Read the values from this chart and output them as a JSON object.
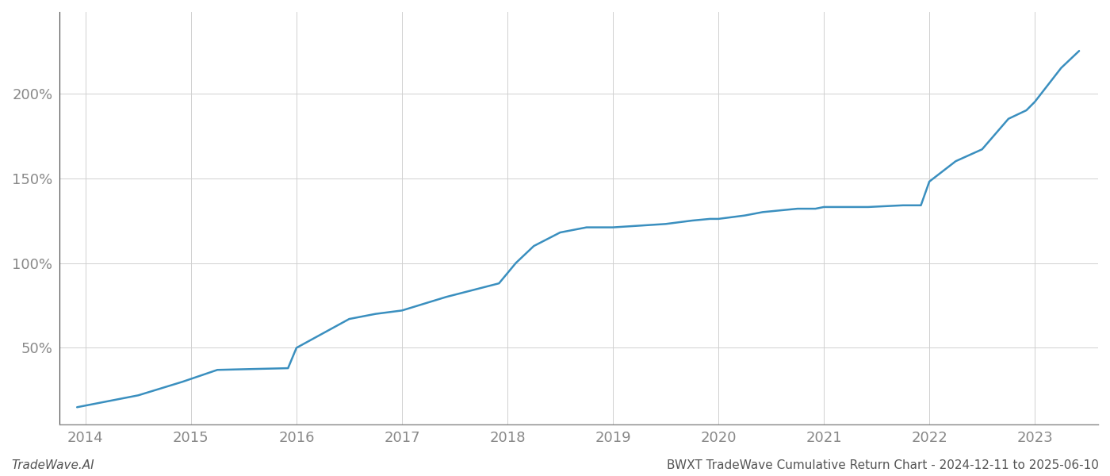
{
  "title": "",
  "footer_left": "TradeWave.AI",
  "footer_right": "BWXT TradeWave Cumulative Return Chart - 2024-12-11 to 2025-06-10",
  "line_color": "#3a8fbf",
  "line_width": 1.8,
  "background_color": "#ffffff",
  "grid_color": "#d0d0d0",
  "x_values": [
    2013.92,
    2014.5,
    2014.92,
    2015.25,
    2015.92,
    2016.0,
    2016.5,
    2016.75,
    2017.0,
    2017.42,
    2017.67,
    2017.92,
    2018.08,
    2018.25,
    2018.5,
    2018.75,
    2018.92,
    2019.0,
    2019.25,
    2019.5,
    2019.75,
    2019.92,
    2020.0,
    2020.25,
    2020.42,
    2020.75,
    2020.92,
    2021.0,
    2021.42,
    2021.75,
    2021.92,
    2022.0,
    2022.25,
    2022.5,
    2022.75,
    2022.92,
    2023.0,
    2023.25,
    2023.42
  ],
  "y_values": [
    15,
    22,
    30,
    37,
    38,
    50,
    67,
    70,
    72,
    80,
    84,
    88,
    100,
    110,
    118,
    121,
    121,
    121,
    122,
    123,
    125,
    126,
    126,
    128,
    130,
    132,
    132,
    133,
    133,
    134,
    134,
    148,
    160,
    167,
    185,
    190,
    195,
    215,
    225
  ],
  "xticks": [
    2014,
    2015,
    2016,
    2017,
    2018,
    2019,
    2020,
    2021,
    2022,
    2023
  ],
  "yticks": [
    50,
    100,
    150,
    200
  ],
  "ylim": [
    5,
    248
  ],
  "xlim": [
    2013.75,
    2023.6
  ],
  "tick_label_color": "#888888",
  "tick_fontsize": 13,
  "footer_fontsize": 11,
  "spine_color": "#888888",
  "left_spine_color": "#444444"
}
